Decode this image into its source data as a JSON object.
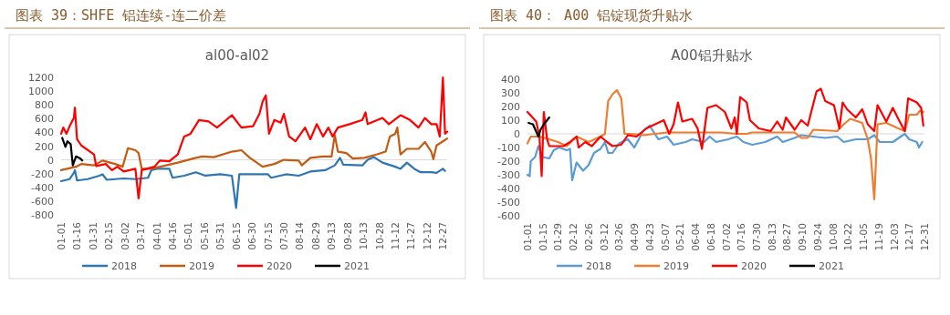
{
  "chart_data": [
    {
      "type": "line",
      "title": "图表 39：SHFE 铝连续-连二价差",
      "subtitle": "al00-al02",
      "xlim": [
        "--01-01",
        "--12-31"
      ],
      "xticks": [
        {
          "value": "--01-01",
          "label": "01-01"
        },
        {
          "value": "--01-16",
          "label": "01-16"
        },
        {
          "value": "--01-31",
          "label": "01-31"
        },
        {
          "value": "--02-15",
          "label": "02-15"
        },
        {
          "value": "--03-02",
          "label": "03-02"
        },
        {
          "value": "--03-17",
          "label": "03-17"
        },
        {
          "value": "--04-01",
          "label": "04-01"
        },
        {
          "value": "--04-16",
          "label": "04-16"
        },
        {
          "value": "--05-01",
          "label": "05-01"
        },
        {
          "value": "--05-16",
          "label": "05-16"
        },
        {
          "value": "--05-31",
          "label": "05-31"
        },
        {
          "value": "--06-15",
          "label": "06-15"
        },
        {
          "value": "--06-30",
          "label": "06-30"
        },
        {
          "value": "--07-15",
          "label": "07-15"
        },
        {
          "value": "--07-30",
          "label": "07-30"
        },
        {
          "value": "--08-14",
          "label": "08-14"
        },
        {
          "value": "--08-29",
          "label": "08-29"
        },
        {
          "value": "--09-13",
          "label": "09-13"
        },
        {
          "value": "--09-28",
          "label": "09-28"
        },
        {
          "value": "--10-13",
          "label": "10-13"
        },
        {
          "value": "--10-28",
          "label": "10-28"
        },
        {
          "value": "--11-12",
          "label": "11-12"
        },
        {
          "value": "--11-27",
          "label": "11-27"
        },
        {
          "value": "--12-12",
          "label": "12-12"
        },
        {
          "value": "--12-27",
          "label": "12-27"
        }
      ],
      "ylim": [
        -800,
        1200
      ],
      "yticks": [
        -800,
        -600,
        -400,
        -200,
        0,
        200,
        400,
        600,
        800,
        1000,
        1200
      ],
      "legend": "bottom",
      "series": [
        {
          "name": "2018",
          "color": "#2e75b6",
          "x": [
            "--01-01",
            "--01-09",
            "--01-13",
            "--01-14",
            "--01-16",
            "--01-26",
            "--02-06",
            "--02-09",
            "--02-13",
            "--03-01",
            "--03-12",
            "--03-24",
            "--03-27",
            "--04-01",
            "--04-13",
            "--04-16",
            "--04-27",
            "--05-08",
            "--05-17",
            "--05-31",
            "--06-11",
            "--06-15",
            "--06-18",
            "--06-28",
            "--07-15",
            "--07-18",
            "--08-01",
            "--08-13",
            "--08-24",
            "--09-07",
            "--09-16",
            "--09-21",
            "--09-24",
            "--10-12",
            "--10-17",
            "--10-23",
            "--10-31",
            "--11-12",
            "--11-17",
            "--11-23",
            "--11-30",
            "--12-06",
            "--12-16",
            "--12-21",
            "--12-27",
            "--12-29"
          ],
          "values": [
            -310,
            -280,
            -190,
            -150,
            -300,
            -280,
            -230,
            -210,
            -290,
            -270,
            -280,
            -260,
            -150,
            -130,
            -130,
            -260,
            -230,
            -180,
            -230,
            -210,
            -230,
            -700,
            -210,
            -210,
            -210,
            -260,
            -210,
            -230,
            -170,
            -150,
            -80,
            30,
            -70,
            -80,
            0,
            40,
            -40,
            -100,
            -130,
            -40,
            -130,
            -180,
            -180,
            -190,
            -130,
            -160
          ]
        },
        {
          "name": "2019",
          "color": "#c55a11",
          "x": [
            "--01-01",
            "--01-15",
            "--01-20",
            "--02-01",
            "--02-09",
            "--02-21",
            "--02-28",
            "--03-05",
            "--03-12",
            "--03-15",
            "--03-18",
            "--03-27",
            "--04-10",
            "--04-21",
            "--05-08",
            "--05-14",
            "--05-25",
            "--06-11",
            "--06-20",
            "--06-28",
            "--07-10",
            "--07-21",
            "--07-30",
            "--08-13",
            "--08-16",
            "--08-24",
            "--09-05",
            "--09-13",
            "--09-16",
            "--09-19",
            "--09-27",
            "--10-03",
            "--10-14",
            "--10-26",
            "--11-03",
            "--11-07",
            "--11-12",
            "--11-14",
            "--11-17",
            "--11-23",
            "--12-04",
            "--12-10",
            "--12-16",
            "--12-18",
            "--12-21",
            "--12-27",
            "--12-31"
          ],
          "values": [
            -150,
            -100,
            -60,
            -80,
            -10,
            -60,
            -100,
            170,
            140,
            100,
            -130,
            -130,
            -80,
            -40,
            30,
            50,
            40,
            120,
            140,
            30,
            -100,
            -60,
            0,
            -10,
            -80,
            30,
            50,
            50,
            360,
            120,
            100,
            20,
            30,
            80,
            120,
            340,
            380,
            470,
            80,
            160,
            160,
            260,
            120,
            10,
            210,
            270,
            310
          ]
        },
        {
          "name": "2020",
          "color": "#ff0000",
          "x": [
            "--01-01",
            "--01-03",
            "--01-06",
            "--01-09",
            "--01-13",
            "--01-14",
            "--01-16",
            "--01-20",
            "--02-01",
            "--02-03",
            "--02-12",
            "--02-18",
            "--02-23",
            "--03-01",
            "--03-12",
            "--03-15",
            "--03-18",
            "--03-30",
            "--04-04",
            "--04-13",
            "--04-21",
            "--04-27",
            "--05-03",
            "--05-11",
            "--05-20",
            "--05-28",
            "--06-11",
            "--06-20",
            "--07-01",
            "--07-07",
            "--07-10",
            "--07-13",
            "--07-16",
            "--07-21",
            "--07-27",
            "--07-30",
            "--08-04",
            "--08-10",
            "--08-19",
            "--08-24",
            "--08-30",
            "--09-05",
            "--09-10",
            "--09-14",
            "--09-19",
            "--09-30",
            "--10-12",
            "--10-15",
            "--10-17",
            "--10-31",
            "--11-06",
            "--11-17",
            "--11-26",
            "--12-04",
            "--12-10",
            "--12-16",
            "--12-21",
            "--12-24",
            "--12-27",
            "--12-29",
            "--12-31"
          ],
          "values": [
            380,
            470,
            380,
            490,
            610,
            760,
            300,
            210,
            80,
            -90,
            -60,
            -150,
            -100,
            -170,
            -130,
            -560,
            -150,
            -100,
            -10,
            -20,
            80,
            340,
            380,
            580,
            560,
            470,
            650,
            470,
            490,
            670,
            850,
            940,
            380,
            580,
            540,
            670,
            340,
            270,
            470,
            300,
            520,
            340,
            470,
            340,
            470,
            520,
            580,
            690,
            520,
            610,
            520,
            650,
            580,
            470,
            610,
            520,
            520,
            340,
            1200,
            380,
            410
          ]
        },
        {
          "name": "2021",
          "color": "#000000",
          "x": [
            "--01-02",
            "--01-05",
            "--01-07",
            "--01-10",
            "--01-12",
            "--01-15",
            "--01-19",
            "--01-21"
          ],
          "values": [
            320,
            190,
            270,
            230,
            -80,
            50,
            20,
            -10
          ]
        }
      ]
    },
    {
      "type": "line",
      "title": "图表 40： A00 铝锭现货升贴水",
      "subtitle": "A00铝升贴水",
      "xlim": [
        "--01-01",
        "--12-31"
      ],
      "xticks": [
        {
          "value": "--01-01",
          "label": "01-01"
        },
        {
          "value": "--01-15",
          "label": "01-15"
        },
        {
          "value": "--01-29",
          "label": "01-29"
        },
        {
          "value": "--02-12",
          "label": "02-12"
        },
        {
          "value": "--02-26",
          "label": "02-26"
        },
        {
          "value": "--03-12",
          "label": "03-12"
        },
        {
          "value": "--03-26",
          "label": "03-26"
        },
        {
          "value": "--04-09",
          "label": "04-09"
        },
        {
          "value": "--04-23",
          "label": "04-23"
        },
        {
          "value": "--05-07",
          "label": "05-07"
        },
        {
          "value": "--05-21",
          "label": "05-21"
        },
        {
          "value": "--06-04",
          "label": "06-04"
        },
        {
          "value": "--06-18",
          "label": "06-18"
        },
        {
          "value": "--07-02",
          "label": "07-02"
        },
        {
          "value": "--07-16",
          "label": "07-16"
        },
        {
          "value": "--07-30",
          "label": "07-30"
        },
        {
          "value": "--08-13",
          "label": "08-13"
        },
        {
          "value": "--08-27",
          "label": "08-27"
        },
        {
          "value": "--09-10",
          "label": "09-10"
        },
        {
          "value": "--09-24",
          "label": "09-24"
        },
        {
          "value": "--10-08",
          "label": "10-08"
        },
        {
          "value": "--10-22",
          "label": "10-22"
        },
        {
          "value": "--11-05",
          "label": "11-05"
        },
        {
          "value": "--11-19",
          "label": "11-19"
        },
        {
          "value": "--12-03",
          "label": "12-03"
        },
        {
          "value": "--12-17",
          "label": "12-17"
        },
        {
          "value": "--12-31",
          "label": "12-31"
        }
      ],
      "ylim": [
        -600,
        400
      ],
      "yticks": [
        -600,
        -500,
        -400,
        -300,
        -200,
        -100,
        0,
        100,
        200,
        300,
        400
      ],
      "legend": "bottom",
      "series": [
        {
          "name": "2018",
          "color": "#5b9bd5",
          "x": [
            "--01-01",
            "--01-03",
            "--01-04",
            "--01-08",
            "--01-11",
            "--01-15",
            "--01-21",
            "--01-25",
            "--01-30",
            "--02-06",
            "--02-09",
            "--02-11",
            "--02-15",
            "--02-21",
            "--02-26",
            "--03-03",
            "--03-09",
            "--03-13",
            "--03-16",
            "--03-20",
            "--03-26",
            "--04-03",
            "--04-09",
            "--04-17",
            "--04-23",
            "--05-01",
            "--05-09",
            "--05-15",
            "--05-26",
            "--06-01",
            "--06-12",
            "--06-17",
            "--06-23",
            "--07-04",
            "--07-12",
            "--07-18",
            "--07-26",
            "--08-07",
            "--08-18",
            "--08-23",
            "--09-03",
            "--09-09",
            "--09-20",
            "--10-01",
            "--10-12",
            "--10-18",
            "--10-29",
            "--11-09",
            "--11-15",
            "--11-20",
            "--12-02",
            "--12-13",
            "--12-17",
            "--12-24",
            "--12-26",
            "--12-29"
          ],
          "values": [
            -300,
            -310,
            -200,
            -170,
            -90,
            -170,
            -180,
            -120,
            -100,
            -120,
            -110,
            -340,
            -210,
            -270,
            -230,
            -140,
            -110,
            -60,
            -140,
            -140,
            -70,
            -40,
            -100,
            20,
            60,
            -40,
            -20,
            -80,
            -60,
            -40,
            -60,
            -20,
            -60,
            -40,
            -20,
            -60,
            -80,
            -60,
            -20,
            -60,
            -30,
            -10,
            -20,
            -30,
            -20,
            -60,
            -40,
            -40,
            -10,
            -60,
            -60,
            0,
            -40,
            -60,
            -100,
            -60
          ]
        },
        {
          "name": "2019",
          "color": "#ed7d31",
          "x": [
            "--01-01",
            "--01-04",
            "--01-12",
            "--01-21",
            "--01-29",
            "--02-06",
            "--02-15",
            "--02-26",
            "--03-09",
            "--03-13",
            "--03-16",
            "--03-20",
            "--03-24",
            "--03-28",
            "--03-31",
            "--04-06",
            "--04-17",
            "--04-28",
            "--05-09",
            "--06-01",
            "--06-28",
            "--07-12",
            "--07-21",
            "--07-26",
            "--08-18",
            "--09-03",
            "--09-09",
            "--09-15",
            "--09-20",
            "--10-12",
            "--10-18",
            "--10-24",
            "--11-04",
            "--11-09",
            "--11-12",
            "--11-15",
            "--11-18",
            "--11-26",
            "--12-07",
            "--12-13",
            "--12-17",
            "--12-24",
            "--12-27",
            "--12-30"
          ],
          "values": [
            -70,
            -20,
            -20,
            -40,
            -60,
            -90,
            -20,
            -60,
            -20,
            0,
            240,
            290,
            320,
            260,
            0,
            0,
            -10,
            0,
            10,
            10,
            10,
            0,
            0,
            10,
            10,
            10,
            -30,
            -30,
            30,
            20,
            70,
            110,
            80,
            -40,
            -180,
            -480,
            70,
            80,
            40,
            20,
            140,
            140,
            170,
            160
          ]
        },
        {
          "name": "2020",
          "color": "#ff0000",
          "x": [
            "--01-01",
            "--01-09",
            "--01-12",
            "--01-14",
            "--01-16",
            "--01-19",
            "--01-21",
            "--02-03",
            "--02-09",
            "--02-15",
            "--02-17",
            "--02-23",
            "--03-01",
            "--03-09",
            "--03-15",
            "--03-20",
            "--03-28",
            "--04-03",
            "--04-11",
            "--04-20",
            "--04-28",
            "--05-06",
            "--05-11",
            "--05-15",
            "--05-19",
            "--05-23",
            "--06-01",
            "--06-06",
            "--06-10",
            "--06-15",
            "--06-23",
            "--07-01",
            "--07-07",
            "--07-10",
            "--07-12",
            "--07-15",
            "--07-21",
            "--07-24",
            "--08-01",
            "--08-12",
            "--08-18",
            "--08-23",
            "--08-26",
            "--09-03",
            "--09-09",
            "--09-15",
            "--09-23",
            "--09-27",
            "--10-01",
            "--10-09",
            "--10-14",
            "--10-17",
            "--10-21",
            "--10-29",
            "--11-04",
            "--11-09",
            "--11-15",
            "--11-18",
            "--11-26",
            "--12-02",
            "--12-07",
            "--12-13",
            "--12-16",
            "--12-24",
            "--12-28",
            "--12-30"
          ],
          "values": [
            160,
            90,
            -20,
            -310,
            160,
            -40,
            -90,
            -90,
            -60,
            -20,
            -100,
            -60,
            -90,
            -20,
            -60,
            -90,
            -80,
            -10,
            -20,
            40,
            70,
            100,
            0,
            70,
            230,
            90,
            110,
            40,
            -110,
            190,
            210,
            160,
            40,
            120,
            0,
            270,
            230,
            100,
            40,
            20,
            90,
            30,
            120,
            30,
            100,
            60,
            310,
            330,
            240,
            210,
            40,
            230,
            180,
            120,
            180,
            70,
            20,
            210,
            90,
            190,
            110,
            20,
            260,
            230,
            190,
            60
          ]
        },
        {
          "name": "2021",
          "color": "#000000",
          "x": [
            "--01-02",
            "--01-06",
            "--01-11",
            "--01-13",
            "--01-16",
            "--01-21"
          ],
          "values": [
            80,
            70,
            -20,
            30,
            70,
            120
          ]
        }
      ]
    }
  ]
}
